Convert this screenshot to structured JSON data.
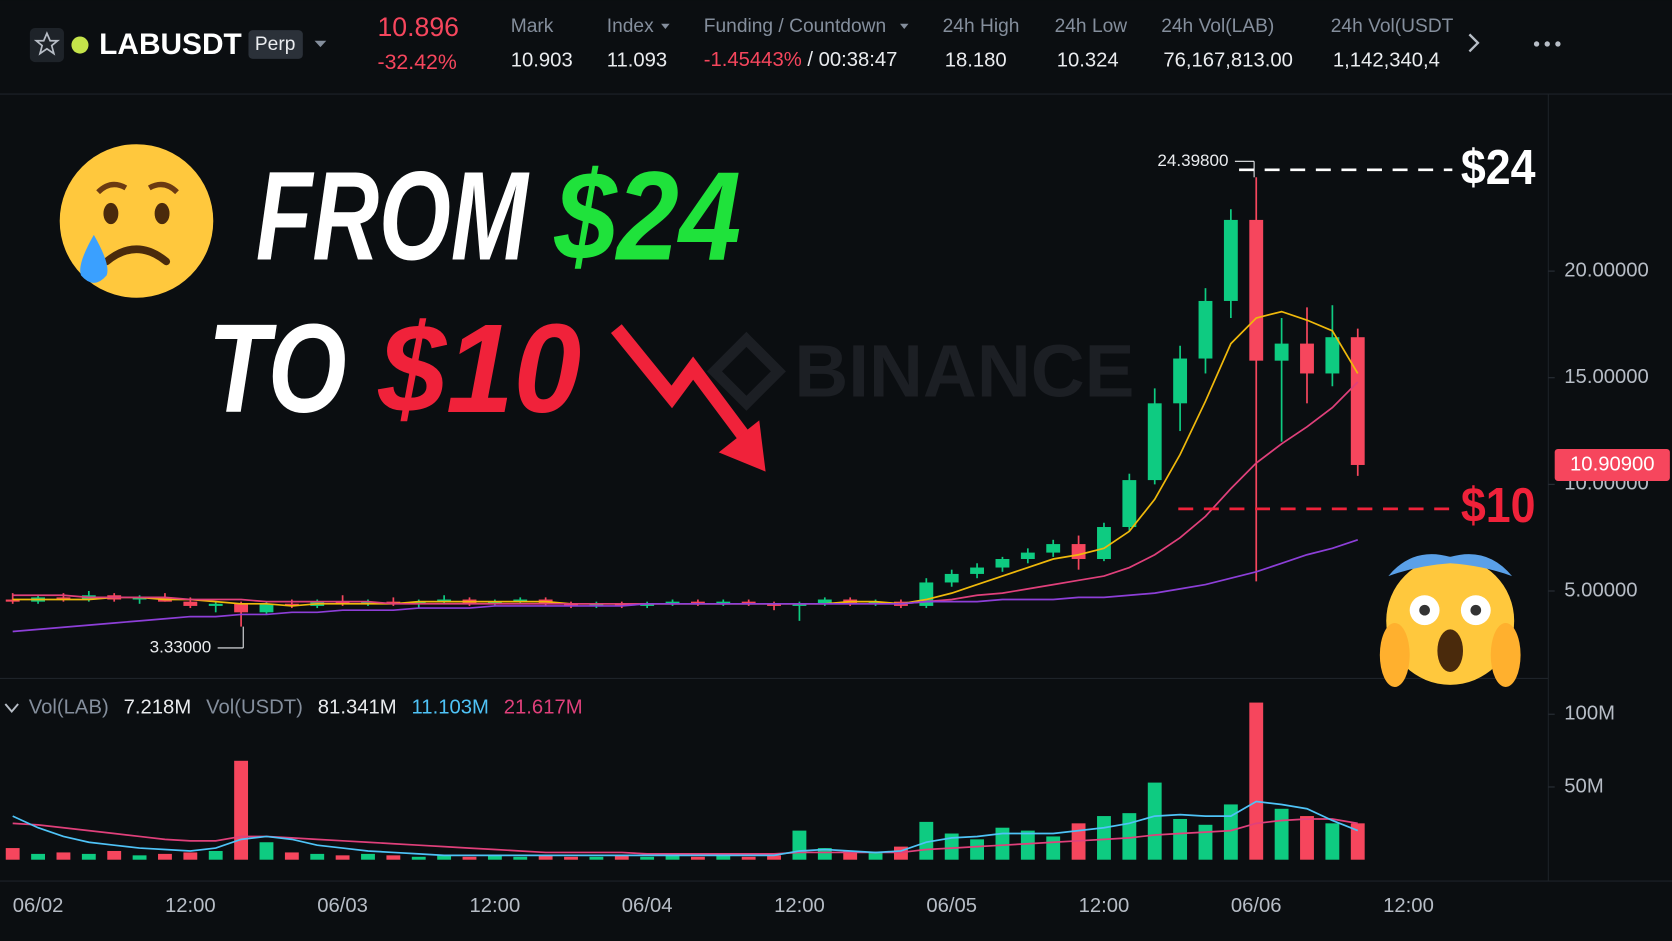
{
  "header": {
    "symbol": "LABUSDT",
    "contract": "Perp",
    "last_price": "10.896",
    "change": "-32.42%",
    "mark_label": "Mark",
    "mark_value": "10.903",
    "index_label": "Index",
    "index_value": "11.093",
    "funding_label": "Funding / Countdown",
    "funding_rate": "-1.45443%",
    "countdown": "/ 00:38:47",
    "high_label": "24h High",
    "high_value": "18.180",
    "low_label": "24h Low",
    "low_value": "10.324",
    "vol_lab_label": "24h Vol(LAB)",
    "vol_lab_value": "76,167,813.00",
    "vol_usdt_label": "24h Vol(USDT",
    "vol_usdt_value": "1,142,340,4"
  },
  "overlay": {
    "line1_word": "FROM",
    "line1_price": "$24",
    "line2_word": "TO",
    "line2_price": "$10",
    "marker_high": "$24",
    "marker_low": "$10",
    "watermark": "BINANCE"
  },
  "chart_data": [
    {
      "type": "candlestick",
      "categories": [
        null,
        "06/02",
        null,
        null,
        null,
        null,
        null,
        "12:00",
        null,
        null,
        null,
        null,
        null,
        "06/03",
        null,
        null,
        null,
        null,
        null,
        "12:00",
        null,
        null,
        null,
        null,
        null,
        "06/04",
        null,
        null,
        null,
        null,
        null,
        "12:00",
        null,
        null,
        null,
        null,
        null,
        "06/05",
        null,
        null,
        null,
        null,
        null,
        "12:00",
        null,
        null,
        null,
        null,
        null,
        "06/06",
        null,
        null,
        null,
        null,
        null,
        "12:00"
      ],
      "open": [
        4.6,
        4.5,
        4.7,
        4.6,
        4.8,
        4.6,
        4.7,
        4.5,
        4.3,
        4.4,
        4.0,
        4.4,
        4.3,
        4.5,
        4.4,
        4.5,
        4.4,
        4.5,
        4.6,
        4.4,
        4.5,
        4.6,
        4.4,
        4.3,
        4.4,
        4.3,
        4.4,
        4.5,
        4.4,
        4.5,
        4.4,
        4.3,
        4.4,
        4.6,
        4.4,
        4.5,
        4.3,
        5.4,
        5.8,
        6.1,
        6.5,
        6.8,
        7.2,
        6.5,
        8.0,
        10.2,
        13.8,
        15.9,
        18.6,
        22.4,
        15.8,
        16.6,
        15.2,
        16.9,
        null,
        null
      ],
      "high": [
        4.9,
        4.8,
        4.9,
        5.0,
        4.9,
        4.8,
        4.9,
        4.7,
        4.5,
        4.5,
        4.5,
        4.6,
        4.6,
        4.8,
        4.6,
        4.7,
        4.6,
        4.8,
        4.7,
        4.6,
        4.7,
        4.7,
        4.5,
        4.5,
        4.5,
        4.5,
        4.6,
        4.6,
        4.6,
        4.6,
        4.5,
        4.5,
        4.7,
        4.7,
        4.6,
        4.6,
        5.6,
        6.0,
        6.3,
        6.6,
        7.0,
        7.4,
        7.6,
        8.2,
        10.5,
        14.5,
        16.5,
        19.2,
        22.9,
        24.398,
        17.8,
        18.3,
        18.4,
        17.3,
        null,
        null
      ],
      "low": [
        4.4,
        4.4,
        4.5,
        4.5,
        4.5,
        4.4,
        4.5,
        4.2,
        4.0,
        3.33,
        3.9,
        4.2,
        4.2,
        4.3,
        4.3,
        4.3,
        4.2,
        4.4,
        4.3,
        4.3,
        4.4,
        4.3,
        4.2,
        4.2,
        4.2,
        4.2,
        4.3,
        4.3,
        4.3,
        4.3,
        4.1,
        3.6,
        4.3,
        4.3,
        4.3,
        4.2,
        4.2,
        5.2,
        5.6,
        5.9,
        6.3,
        6.6,
        6.0,
        6.4,
        7.8,
        10.0,
        12.5,
        15.2,
        17.8,
        5.45,
        12.0,
        13.8,
        14.6,
        10.4,
        null,
        null
      ],
      "close": [
        4.5,
        4.7,
        4.6,
        4.8,
        4.6,
        4.7,
        4.5,
        4.3,
        4.4,
        4.0,
        4.4,
        4.3,
        4.5,
        4.4,
        4.5,
        4.4,
        4.5,
        4.6,
        4.4,
        4.5,
        4.6,
        4.4,
        4.3,
        4.4,
        4.3,
        4.4,
        4.5,
        4.4,
        4.5,
        4.4,
        4.3,
        4.4,
        4.6,
        4.4,
        4.5,
        4.3,
        5.4,
        5.8,
        6.1,
        6.5,
        6.8,
        7.2,
        6.5,
        8.0,
        10.2,
        13.8,
        15.9,
        18.6,
        22.4,
        15.8,
        16.6,
        15.2,
        16.9,
        10.909,
        null,
        null
      ],
      "up_color": "#0ecb81",
      "down_color": "#f6465d",
      "lines": [
        {
          "color": "#f0b90b",
          "values": [
            4.6,
            4.6,
            4.6,
            4.6,
            4.7,
            4.7,
            4.6,
            4.6,
            4.5,
            4.4,
            4.4,
            4.3,
            4.4,
            4.4,
            4.4,
            4.4,
            4.5,
            4.5,
            4.5,
            4.5,
            4.5,
            4.5,
            4.4,
            4.4,
            4.4,
            4.4,
            4.4,
            4.4,
            4.4,
            4.4,
            4.4,
            4.4,
            4.4,
            4.5,
            4.5,
            4.4,
            4.6,
            4.9,
            5.3,
            5.7,
            6.1,
            6.5,
            6.7,
            7.0,
            7.8,
            9.3,
            11.4,
            13.9,
            16.6,
            17.8,
            18.1,
            17.7,
            17.2,
            15.2,
            null,
            null
          ]
        },
        {
          "color": "#e0407b",
          "values": [
            4.8,
            4.8,
            4.8,
            4.7,
            4.7,
            4.7,
            4.7,
            4.6,
            4.6,
            4.6,
            4.5,
            4.5,
            4.5,
            4.5,
            4.5,
            4.4,
            4.4,
            4.4,
            4.4,
            4.4,
            4.4,
            4.4,
            4.4,
            4.4,
            4.4,
            4.4,
            4.4,
            4.4,
            4.4,
            4.4,
            4.4,
            4.4,
            4.4,
            4.4,
            4.4,
            4.4,
            4.5,
            4.6,
            4.8,
            4.9,
            5.1,
            5.3,
            5.5,
            5.7,
            6.1,
            6.7,
            7.5,
            8.5,
            9.8,
            11.0,
            11.9,
            12.7,
            13.6,
            14.8,
            null,
            null
          ]
        },
        {
          "color": "#8d3fd8",
          "values": [
            3.1,
            3.2,
            3.3,
            3.4,
            3.5,
            3.6,
            3.7,
            3.8,
            3.8,
            3.9,
            3.9,
            4.0,
            4.0,
            4.1,
            4.1,
            4.1,
            4.2,
            4.2,
            4.2,
            4.3,
            4.3,
            4.3,
            4.3,
            4.3,
            4.3,
            4.4,
            4.4,
            4.4,
            4.4,
            4.4,
            4.4,
            4.4,
            4.4,
            4.4,
            4.4,
            4.4,
            4.5,
            4.5,
            4.5,
            4.6,
            4.6,
            4.6,
            4.7,
            4.7,
            4.8,
            4.9,
            5.1,
            5.3,
            5.6,
            5.9,
            6.3,
            6.7,
            7.0,
            7.4,
            null,
            null
          ]
        }
      ],
      "high_label": "24.39800",
      "low_label": "3.33000",
      "last_close_label": "10.90900",
      "ylim": [
        1,
        28.2
      ],
      "yticks": [
        {
          "value": 5,
          "label": "5.00000"
        },
        {
          "value": 10,
          "label": "10.00000"
        },
        {
          "value": 15,
          "label": "15.00000"
        },
        {
          "value": 20,
          "label": "20.00000"
        }
      ]
    },
    {
      "type": "bar",
      "legend": [
        {
          "text": "Vol(LAB)",
          "color": "#848e9c"
        },
        {
          "text": "7.218M",
          "color": "#eaecef"
        },
        {
          "text": "Vol(USDT)",
          "color": "#848e9c"
        },
        {
          "text": "81.341M",
          "color": "#eaecef"
        },
        {
          "text": "11.103M",
          "color": "#4fc3f7"
        },
        {
          "text": "21.617M",
          "color": "#e0407b"
        }
      ],
      "values": [
        8,
        4,
        5,
        4,
        6,
        3,
        4,
        5,
        6,
        68,
        12,
        5,
        4,
        3,
        4,
        3,
        2,
        3,
        2,
        3,
        2,
        3,
        2,
        2,
        3,
        2,
        3,
        2,
        3,
        2,
        3,
        20,
        8,
        6,
        5,
        9,
        26,
        18,
        14,
        22,
        20,
        16,
        25,
        30,
        32,
        53,
        28,
        24,
        38,
        108,
        35,
        30,
        25,
        25,
        null,
        null
      ],
      "lines": [
        {
          "color": "#e0407b",
          "values": [
            25,
            24,
            22,
            20,
            18,
            16,
            14,
            13,
            13,
            16,
            16,
            15,
            14,
            13,
            12,
            11,
            10,
            9,
            8,
            7,
            6,
            5,
            5,
            5,
            5,
            4,
            4,
            4,
            4,
            4,
            4,
            5,
            5,
            5,
            5,
            5,
            7,
            8,
            9,
            10,
            11,
            12,
            13,
            14,
            15,
            17,
            18,
            19,
            20,
            25,
            27,
            28,
            28,
            25,
            null,
            null
          ]
        },
        {
          "color": "#4fc3f7",
          "values": [
            30,
            22,
            16,
            12,
            10,
            8,
            7,
            6,
            8,
            14,
            16,
            14,
            10,
            8,
            6,
            5,
            4,
            3,
            3,
            3,
            3,
            3,
            3,
            3,
            3,
            3,
            3,
            3,
            3,
            3,
            3,
            6,
            7,
            6,
            5,
            6,
            12,
            15,
            16,
            18,
            18,
            18,
            20,
            22,
            25,
            30,
            31,
            30,
            30,
            40,
            38,
            35,
            27,
            20,
            null,
            null
          ]
        }
      ],
      "ylim": [
        0,
        118
      ],
      "yticks": [
        {
          "value": 50,
          "label": "50M"
        },
        {
          "value": 100,
          "label": "100M"
        }
      ]
    }
  ]
}
